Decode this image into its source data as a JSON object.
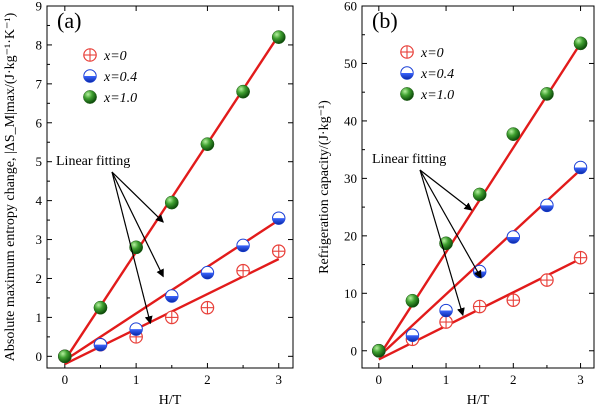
{
  "chart_data": [
    {
      "type": "scatter",
      "panel_label": "(a)",
      "xlabel": "H/T",
      "ylabel": "Absolute maximum entropy change, |ΔS_M|max/(J·kg⁻¹·K⁻¹)",
      "xlim": [
        -0.25,
        3.2
      ],
      "ylim": [
        -0.3,
        9
      ],
      "xticks": [
        0,
        1,
        2,
        3
      ],
      "yticks": [
        0,
        1,
        2,
        3,
        4,
        5,
        6,
        7,
        8,
        9
      ],
      "grid": false,
      "legend_position": "top-left",
      "annotation": "Linear fitting",
      "series": [
        {
          "name": "x=0",
          "marker": "crosshair",
          "color": "#e8403a",
          "x": [
            0,
            0.5,
            1,
            1.5,
            2,
            2.5,
            3
          ],
          "y": [
            0,
            0.3,
            0.5,
            1.0,
            1.25,
            2.2,
            2.7
          ],
          "fit": {
            "x": [
              0,
              3
            ],
            "y": [
              -0.2,
              2.5
            ]
          }
        },
        {
          "name": "x=0.4",
          "marker": "half",
          "color": "#1a3fd6",
          "x": [
            0,
            0.5,
            1,
            1.5,
            2,
            2.5,
            3
          ],
          "y": [
            0,
            0.3,
            0.7,
            1.55,
            2.15,
            2.85,
            3.55
          ],
          "fit": {
            "x": [
              0,
              3
            ],
            "y": [
              -0.1,
              3.5
            ]
          }
        },
        {
          "name": "x=1.0",
          "marker": "sphere",
          "color": "#2e8b22",
          "x": [
            0,
            0.5,
            1,
            1.5,
            2,
            2.5,
            3
          ],
          "y": [
            0,
            1.25,
            2.8,
            3.95,
            5.45,
            6.8,
            8.2
          ],
          "fit": {
            "x": [
              0,
              3
            ],
            "y": [
              -0.1,
              8.25
            ]
          }
        }
      ]
    },
    {
      "type": "scatter",
      "panel_label": "(b)",
      "xlabel": "H/T",
      "ylabel": "Refrigeration capacity/(J·kg⁻¹)",
      "xlim": [
        -0.25,
        3.2
      ],
      "ylim": [
        -3,
        60
      ],
      "xticks": [
        0,
        1,
        2,
        3
      ],
      "yticks": [
        0,
        10,
        20,
        30,
        40,
        50,
        60
      ],
      "grid": false,
      "legend_position": "top-left",
      "annotation": "Linear fitting",
      "series": [
        {
          "name": "x=0",
          "marker": "crosshair",
          "color": "#e8403a",
          "x": [
            0,
            0.5,
            1,
            1.5,
            2,
            2.5,
            3
          ],
          "y": [
            0,
            2,
            5,
            7.7,
            8.8,
            12.3,
            16.2
          ],
          "fit": {
            "x": [
              0,
              3
            ],
            "y": [
              -1.5,
              16
            ]
          }
        },
        {
          "name": "x=0.4",
          "marker": "half",
          "color": "#1a3fd6",
          "x": [
            0,
            0.5,
            1,
            1.5,
            2,
            2.5,
            3
          ],
          "y": [
            0,
            2.7,
            7,
            13.8,
            19.8,
            25.3,
            31.9
          ],
          "fit": {
            "x": [
              0,
              3
            ],
            "y": [
              -1,
              31.5
            ]
          }
        },
        {
          "name": "x=1.0",
          "marker": "sphere",
          "color": "#2e8b22",
          "x": [
            0,
            0.5,
            1,
            1.5,
            2,
            2.5,
            3
          ],
          "y": [
            0,
            8.7,
            18.7,
            27.2,
            37.7,
            44.7,
            53.5
          ],
          "fit": {
            "x": [
              0,
              3
            ],
            "y": [
              -1,
              53.5
            ]
          }
        }
      ]
    }
  ]
}
